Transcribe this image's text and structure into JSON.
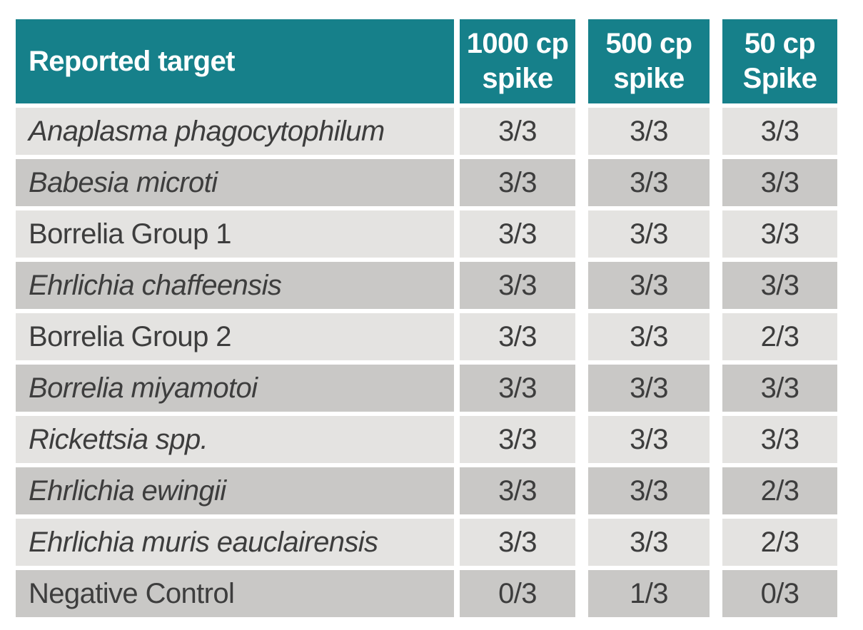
{
  "page": {
    "background_color": "#FFFFFF"
  },
  "table": {
    "name": "Spike recovery results by reported target",
    "accent_color": "#16808A",
    "header_text_color": "#FFFFFF",
    "row_light_color": "#E4E3E1",
    "row_dark_color": "#C9C8C6",
    "body_text_color": "#3D3D3D",
    "columns": [
      {
        "label": "Reported target"
      },
      {
        "label": "1000 cp\nspike"
      },
      {
        "label": "500 cp\nspike"
      },
      {
        "label": "50 cp\nSpike"
      }
    ],
    "rows": [
      {
        "target": "Anaplasma phagocytophilum",
        "italic": true,
        "values": [
          "3/3",
          "3/3",
          "3/3"
        ]
      },
      {
        "target": "Babesia microti",
        "italic": true,
        "values": [
          "3/3",
          "3/3",
          "3/3"
        ]
      },
      {
        "target": "Borrelia Group 1",
        "italic": false,
        "values": [
          "3/3",
          "3/3",
          "3/3"
        ]
      },
      {
        "target": "Ehrlichia chaffeensis",
        "italic": true,
        "values": [
          "3/3",
          "3/3",
          "3/3"
        ]
      },
      {
        "target": "Borrelia Group 2",
        "italic": false,
        "values": [
          "3/3",
          "3/3",
          "2/3"
        ]
      },
      {
        "target": "Borrelia miyamotoi",
        "italic": true,
        "values": [
          "3/3",
          "3/3",
          "3/3"
        ]
      },
      {
        "target": "Rickettsia spp.",
        "italic": true,
        "values": [
          "3/3",
          "3/3",
          "3/3"
        ]
      },
      {
        "target": "Ehrlichia ewingii",
        "italic": true,
        "values": [
          "3/3",
          "3/3",
          "2/3"
        ]
      },
      {
        "target": "Ehrlichia muris eauclairensis",
        "italic": true,
        "values": [
          "3/3",
          "3/3",
          "2/3"
        ]
      },
      {
        "target": "Negative Control",
        "italic": false,
        "values": [
          "0/3",
          "1/3",
          "0/3"
        ]
      }
    ]
  }
}
